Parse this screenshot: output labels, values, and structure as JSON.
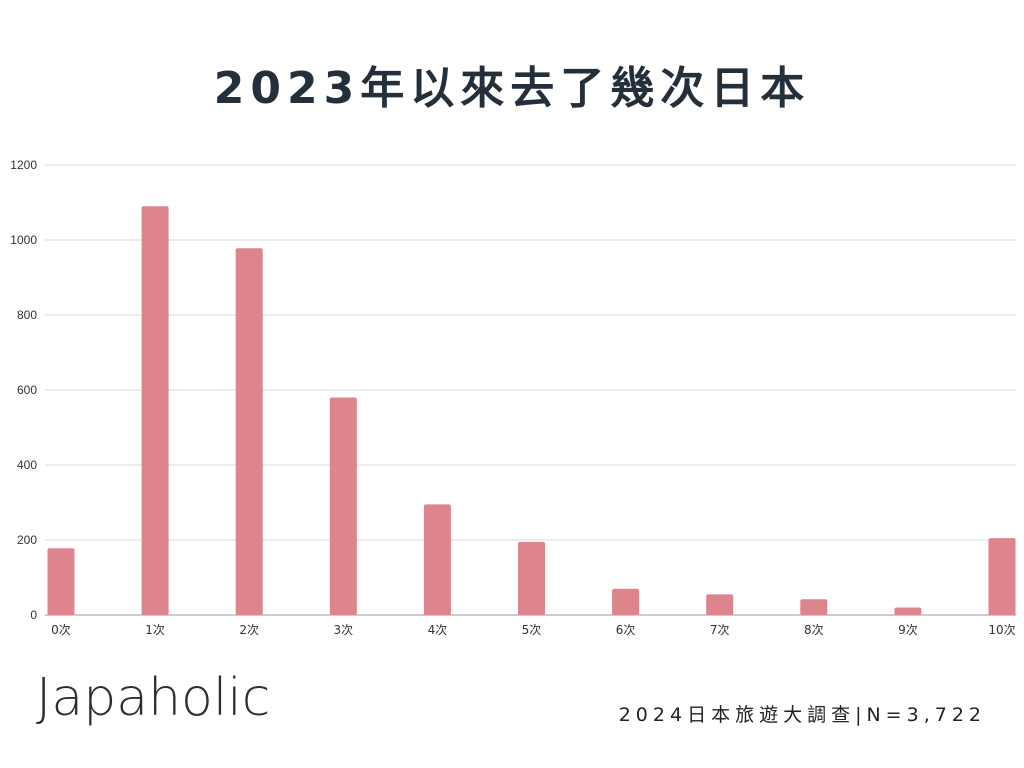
{
  "title": "2023年以來去了幾次日本",
  "brand": "Japaholic",
  "footer": "2024日本旅遊大調查|N=3,722",
  "colors": {
    "bar": "#de848d",
    "grid": "#d9d9d9",
    "title": "#232f3a"
  },
  "chart_data": {
    "type": "bar",
    "categories": [
      "0次",
      "1次",
      "2次",
      "3次",
      "4次",
      "5次",
      "6次",
      "7次",
      "8次",
      "9次",
      "10次"
    ],
    "values": [
      178,
      1090,
      978,
      580,
      295,
      195,
      70,
      55,
      42,
      20,
      205
    ],
    "ylim": [
      0,
      1200
    ],
    "yticks": [
      0,
      200,
      400,
      600,
      800,
      1000,
      1200
    ],
    "grid": true,
    "legend": "none"
  }
}
